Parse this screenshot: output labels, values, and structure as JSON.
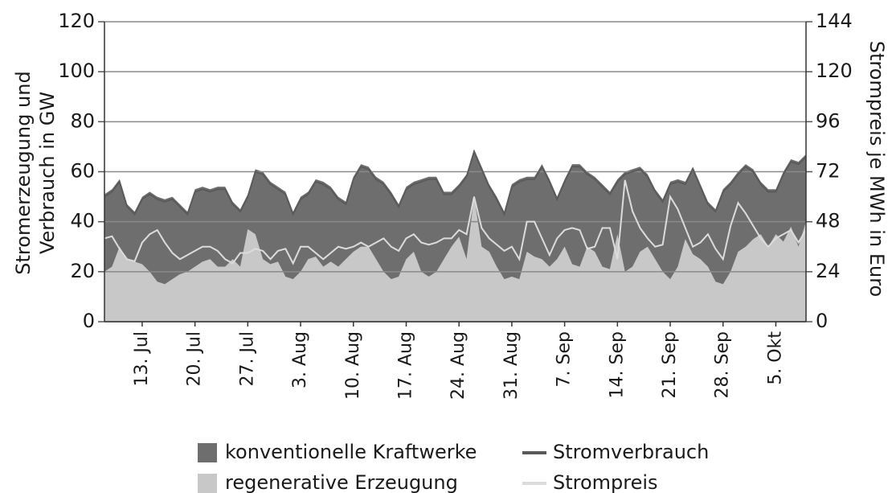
{
  "chart_data": {
    "type": "area",
    "ylabel": [
      "Stromerzeugung und",
      "Verbrauch in GW"
    ],
    "y2label": "Strompreis je MWh in Euro",
    "categories": [
      null,
      null,
      null,
      null,
      null,
      "13. Jul",
      null,
      null,
      null,
      null,
      null,
      null,
      "20. Jul",
      null,
      null,
      null,
      null,
      null,
      null,
      "27. Jul",
      null,
      null,
      null,
      null,
      null,
      null,
      "3. Aug",
      null,
      null,
      null,
      null,
      null,
      null,
      "10. Aug",
      null,
      null,
      null,
      null,
      null,
      null,
      "17. Aug",
      null,
      null,
      null,
      null,
      null,
      null,
      "24. Aug",
      null,
      null,
      null,
      null,
      null,
      null,
      "31. Aug",
      null,
      null,
      null,
      null,
      null,
      null,
      "7. Sep",
      null,
      null,
      null,
      null,
      null,
      null,
      "14. Sep",
      null,
      null,
      null,
      null,
      null,
      null,
      "21. Sep",
      null,
      null,
      null,
      null,
      null,
      null,
      "28. Sep",
      null,
      null,
      null,
      null,
      null,
      null,
      "5. Okt",
      null,
      null,
      null,
      null
    ],
    "series": [
      {
        "name": "konventionelle Kraftwerke",
        "type": "area",
        "color": "#6e6e6e",
        "values": [
          31,
          31,
          27,
          22,
          20,
          27,
          32,
          34,
          34,
          33,
          28,
          24,
          31,
          30,
          28,
          32,
          32,
          23,
          23,
          14,
          26,
          35,
          33,
          30,
          34,
          27,
          30,
          27,
          31,
          34,
          30,
          28,
          23,
          30,
          33,
          32,
          33,
          36,
          35,
          29,
          29,
          28,
          37,
          40,
          38,
          27,
          22,
          21,
          34,
          19,
          32,
          27,
          28,
          27,
          37,
          40,
          30,
          32,
          38,
          35,
          25,
          27,
          40,
          41,
          30,
          30,
          33,
          31,
          22,
          40,
          39,
          34,
          29,
          28,
          29,
          39,
          35,
          23,
          35,
          30,
          26,
          29,
          38,
          36,
          32,
          33,
          28,
          21,
          23,
          18,
          28,
          27,
          34,
          27
        ]
      },
      {
        "name": "regenerative Erzeugung",
        "type": "area",
        "color": "#c8c8c8",
        "values": [
          20,
          22,
          30,
          25,
          24,
          23,
          20,
          16,
          15,
          17,
          19,
          20,
          22,
          24,
          25,
          22,
          22,
          25,
          22,
          37,
          35,
          25,
          23,
          24,
          18,
          17,
          20,
          25,
          26,
          22,
          24,
          22,
          25,
          28,
          30,
          30,
          25,
          20,
          17,
          18,
          25,
          28,
          20,
          18,
          20,
          25,
          30,
          34,
          25,
          50,
          30,
          28,
          22,
          17,
          18,
          17,
          28,
          26,
          25,
          22,
          25,
          30,
          23,
          22,
          30,
          28,
          22,
          21,
          35,
          20,
          22,
          28,
          30,
          25,
          20,
          17,
          22,
          33,
          27,
          25,
          22,
          16,
          15,
          20,
          28,
          30,
          33,
          35,
          30,
          35,
          32,
          38,
          30,
          40
        ]
      },
      {
        "name": "Stromverbrauch",
        "type": "line",
        "color": "#5a5a5a",
        "values": [
          50,
          52,
          56,
          46,
          43,
          49,
          51,
          49,
          48,
          49,
          46,
          43,
          52,
          53,
          52,
          53,
          53,
          47,
          44,
          50,
          60,
          59,
          55,
          53,
          51,
          43,
          49,
          51,
          56,
          55,
          53,
          49,
          47,
          57,
          62,
          61,
          57,
          55,
          51,
          46,
          53,
          55,
          56,
          57,
          57,
          51,
          51,
          54,
          58,
          68,
          61,
          54,
          49,
          43,
          54,
          56,
          57,
          57,
          62,
          56,
          49,
          56,
          62,
          62,
          59,
          57,
          54,
          51,
          56,
          59,
          60,
          61,
          58,
          52,
          48,
          55,
          56,
          55,
          61,
          54,
          47,
          44,
          52,
          55,
          59,
          62,
          60,
          55,
          52,
          52,
          59,
          64,
          63,
          66
        ]
      },
      {
        "name": "Strompreis",
        "type": "line",
        "axis": "y2",
        "color": "#dcdcdc",
        "values": [
          40,
          41,
          35,
          30,
          29,
          38,
          42,
          44,
          38,
          33,
          30,
          32,
          34,
          36,
          36,
          34,
          30,
          28,
          33,
          33,
          35,
          34,
          30,
          34,
          35,
          28,
          36,
          36,
          33,
          30,
          33,
          36,
          35,
          36,
          38,
          36,
          38,
          40,
          36,
          34,
          40,
          42,
          38,
          37,
          38,
          40,
          40,
          44,
          42,
          60,
          45,
          40,
          37,
          34,
          36,
          30,
          48,
          48,
          40,
          32,
          40,
          44,
          45,
          44,
          35,
          36,
          45,
          45,
          30,
          68,
          53,
          45,
          40,
          36,
          37,
          60,
          54,
          45,
          36,
          38,
          42,
          35,
          30,
          46,
          57,
          52,
          46,
          40,
          36,
          40,
          42,
          44,
          38,
          44
        ]
      }
    ],
    "ylim": [
      0,
      120
    ],
    "yticks": [
      0,
      20,
      40,
      60,
      80,
      100,
      120
    ],
    "y2lim": [
      0,
      144
    ],
    "y2ticks": [
      0,
      24,
      48,
      72,
      96,
      120,
      144
    ],
    "grid": true,
    "stacked": true,
    "legend": "bottom"
  }
}
